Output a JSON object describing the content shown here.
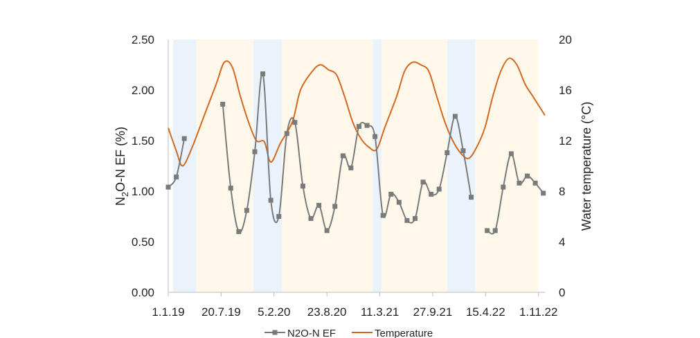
{
  "chart_data": {
    "type": "line",
    "y_left": {
      "label": "N2O-N EF (%)",
      "label_main": "N",
      "label_sub": "2",
      "label_rest": "O-N EF (%)",
      "range": [
        0,
        2.5
      ],
      "ticks": [
        "0.00",
        "0.50",
        "1.00",
        "1.50",
        "2.00",
        "2.50"
      ]
    },
    "y_right": {
      "label": "Water temperature (°C)",
      "range": [
        0,
        20
      ],
      "ticks": [
        "0",
        "4",
        "8",
        "12",
        "16",
        "20"
      ]
    },
    "x": {
      "range": [
        0,
        47
      ],
      "tick_positions": [
        0,
        6.6,
        13.2,
        19.8,
        26.4,
        33,
        39.6,
        46.2
      ],
      "ticks": [
        "1.1.19",
        "",
        "20.7.19",
        "",
        "5.2.20",
        "",
        "23.8.20",
        "",
        "11.3.21",
        "",
        "27.9.21",
        "",
        "15.4.22",
        "",
        "1.11.22"
      ]
    },
    "shading": [
      {
        "from": 0.6,
        "to": 3.5,
        "color": "#eaf3fb"
      },
      {
        "from": 3.5,
        "to": 10.6,
        "color": "#fdf8ea"
      },
      {
        "from": 10.6,
        "to": 14.2,
        "color": "#eaf3fb"
      },
      {
        "from": 14.2,
        "to": 25.5,
        "color": "#fdf8ea"
      },
      {
        "from": 25.5,
        "to": 26.6,
        "color": "#eaf3fb"
      },
      {
        "from": 26.6,
        "to": 34.8,
        "color": "#fdf8ea"
      },
      {
        "from": 34.8,
        "to": 38.3,
        "color": "#eaf3fb"
      },
      {
        "from": 38.3,
        "to": 46.2,
        "color": "#fdf8ea"
      }
    ],
    "series": [
      {
        "name": "N2O-N EF",
        "axis": "left",
        "color": "#7a7a7a",
        "marker": "square",
        "segments": [
          [
            [
              0,
              1.04
            ],
            [
              1,
              1.14
            ],
            [
              2,
              1.52
            ]
          ],
          [
            [
              6.8,
              1.86
            ],
            [
              7.8,
              1.03
            ],
            [
              8.8,
              0.6
            ],
            [
              9.8,
              0.81
            ],
            [
              10.8,
              1.39
            ],
            [
              11.8,
              2.16
            ],
            [
              12.8,
              0.91
            ],
            [
              13.8,
              0.75
            ],
            [
              14.8,
              1.57
            ],
            [
              15.8,
              1.68
            ],
            [
              16.8,
              1.05
            ],
            [
              17.8,
              0.73
            ],
            [
              18.8,
              0.86
            ],
            [
              19.8,
              0.61
            ],
            [
              20.8,
              0.85
            ],
            [
              21.8,
              1.35
            ],
            [
              22.8,
              1.23
            ],
            [
              23.8,
              1.64
            ],
            [
              24.8,
              1.65
            ],
            [
              25.8,
              1.54
            ],
            [
              26.8,
              0.76
            ],
            [
              27.8,
              0.97
            ],
            [
              28.8,
              0.89
            ],
            [
              29.8,
              0.71
            ],
            [
              30.8,
              0.73
            ],
            [
              31.8,
              1.09
            ],
            [
              32.8,
              0.97
            ],
            [
              33.8,
              1.02
            ],
            [
              34.8,
              1.38
            ],
            [
              35.8,
              1.74
            ],
            [
              36.8,
              1.4
            ],
            [
              37.8,
              0.94
            ]
          ],
          [
            [
              39.8,
              0.61
            ],
            [
              40.8,
              0.61
            ],
            [
              41.8,
              1.04
            ],
            [
              42.8,
              1.37
            ],
            [
              43.8,
              1.08
            ],
            [
              44.8,
              1.15
            ],
            [
              45.8,
              1.08
            ],
            [
              46.8,
              0.98
            ]
          ]
        ]
      },
      {
        "name": "Temperature",
        "axis": "right",
        "color": "#d4681e",
        "points": [
          [
            0,
            13.0
          ],
          [
            1,
            11.2
          ],
          [
            1.8,
            10.0
          ],
          [
            3,
            11.5
          ],
          [
            4.5,
            14.0
          ],
          [
            6,
            16.5
          ],
          [
            7,
            18.2
          ],
          [
            8,
            17.8
          ],
          [
            9,
            15.5
          ],
          [
            10,
            13.5
          ],
          [
            11,
            12.0
          ],
          [
            12,
            11.9
          ],
          [
            12.8,
            10.3
          ],
          [
            14,
            11.8
          ],
          [
            15.5,
            13.5
          ],
          [
            16.5,
            16.0
          ],
          [
            18,
            17.5
          ],
          [
            19,
            18.0
          ],
          [
            20,
            17.6
          ],
          [
            21,
            17.2
          ],
          [
            22,
            15.5
          ],
          [
            23,
            13.5
          ],
          [
            24,
            12.2
          ],
          [
            25,
            11.5
          ],
          [
            26,
            11.3
          ],
          [
            27,
            13.0
          ],
          [
            28.5,
            15.5
          ],
          [
            29.5,
            17.5
          ],
          [
            30.5,
            18.2
          ],
          [
            31.5,
            18.0
          ],
          [
            32.5,
            17.5
          ],
          [
            33.5,
            15.5
          ],
          [
            34.5,
            13.5
          ],
          [
            35.5,
            12.0
          ],
          [
            36.5,
            11.0
          ],
          [
            37.5,
            10.6
          ],
          [
            38.5,
            11.5
          ],
          [
            39.5,
            13.0
          ],
          [
            40.5,
            15.5
          ],
          [
            41.5,
            17.5
          ],
          [
            42.5,
            18.5
          ],
          [
            43.5,
            18.0
          ],
          [
            44.5,
            16.5
          ],
          [
            45.5,
            15.5
          ],
          [
            46.5,
            14.5
          ],
          [
            47,
            14.0
          ]
        ]
      }
    ],
    "legend": {
      "placement": "bottom"
    },
    "grid": false
  }
}
